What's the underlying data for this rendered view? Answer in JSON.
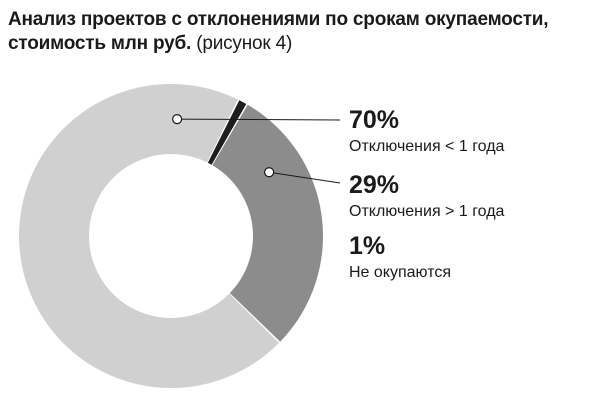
{
  "title": {
    "line1": "Анализ проектов с отклонениями по срокам окупаемости,",
    "line2_bold": "стоимость млн руб.",
    "line2_normal": "(рисунок 4)"
  },
  "chart_data": {
    "type": "pie",
    "donut": true,
    "slices": [
      {
        "label": "Отключения < 1 года",
        "value": 70,
        "display": "70%",
        "color": "#d0d0d0"
      },
      {
        "label": "Отключения > 1 года",
        "value": 29,
        "display": "29%",
        "color": "#8c8c8c"
      },
      {
        "label": "Не окупаются",
        "value": 1,
        "display": "1%",
        "color": "#1e1e1e"
      }
    ],
    "slice_order_clockwise_from_top_right": [
      "Отключения > 1 года",
      "Отключения < 1 года",
      "Не окупаются"
    ]
  }
}
